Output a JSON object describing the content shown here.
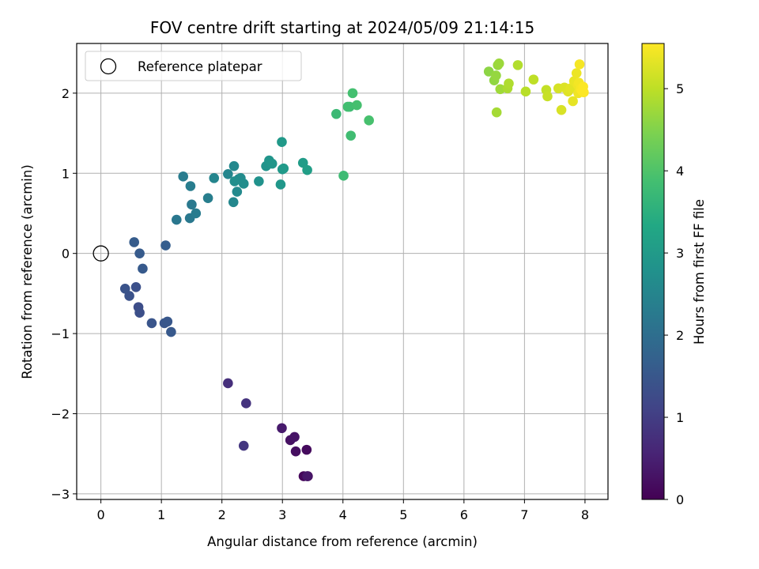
{
  "chart_data": {
    "type": "scatter",
    "title": "FOV centre drift starting at 2024/05/09 21:14:15",
    "xlabel": "Angular distance from reference (arcmin)",
    "ylabel": "Rotation from reference (arcmin)",
    "xlim": [
      -0.4,
      8.38
    ],
    "ylim": [
      -3.07,
      2.62
    ],
    "xticks": [
      0,
      1,
      2,
      3,
      4,
      5,
      6,
      7,
      8
    ],
    "yticks": [
      -3,
      -2,
      -1,
      0,
      1,
      2
    ],
    "grid": true,
    "legend": {
      "placement": "top-left",
      "entries": [
        {
          "label": "Reference platepar",
          "marker": "open-circle"
        }
      ]
    },
    "reference_point": {
      "x": 0,
      "y": 0
    },
    "colorbar": {
      "label": "Hours from first FF file",
      "colormap": "viridis",
      "range": [
        0,
        5.55
      ],
      "ticks": [
        0,
        1,
        2,
        3,
        4,
        5
      ]
    },
    "series": [
      {
        "x": [
          3.42,
          3.35,
          3.4,
          3.22,
          3.13,
          3.2,
          3.41,
          2.99,
          2.1,
          2.4,
          2.36,
          0.62,
          0.64,
          0.58,
          0.47,
          0.4,
          0.84,
          1.05,
          1.1,
          1.16,
          0.69,
          0.64,
          0.55,
          1.07,
          1.25,
          1.47,
          1.5,
          1.57,
          1.36,
          1.48,
          1.77,
          1.87,
          2.1,
          2.19,
          2.2,
          2.25,
          2.28,
          2.31,
          2.36,
          2.21,
          2.61,
          2.73,
          2.78,
          2.83,
          2.97,
          3.0,
          2.99,
          3.02,
          3.34,
          3.41,
          3.89,
          4.01,
          4.11,
          4.13,
          4.08,
          4.16,
          4.23,
          4.43,
          6.41,
          6.5,
          6.53,
          6.56,
          6.58,
          6.6,
          6.54,
          6.72,
          6.74,
          6.89,
          7.02,
          7.15,
          7.36,
          7.38,
          7.56,
          7.61,
          7.66,
          7.72,
          7.76,
          7.8,
          7.82,
          7.86,
          7.88,
          7.89,
          7.9,
          7.91,
          7.93,
          7.95,
          7.97,
          7.98
        ],
        "y": [
          -2.78,
          -2.78,
          -2.45,
          -2.47,
          -2.33,
          -2.29,
          -2.78,
          -2.18,
          -1.62,
          -1.87,
          -2.4,
          -0.67,
          -0.74,
          -0.42,
          -0.53,
          -0.44,
          -0.87,
          -0.87,
          -0.85,
          -0.98,
          -0.19,
          0.0,
          0.14,
          0.1,
          0.42,
          0.44,
          0.61,
          0.5,
          0.96,
          0.84,
          0.69,
          0.94,
          0.99,
          0.64,
          1.09,
          0.77,
          0.93,
          0.94,
          0.87,
          0.9,
          0.9,
          1.09,
          1.16,
          1.12,
          0.86,
          1.05,
          1.39,
          1.06,
          1.13,
          1.04,
          1.74,
          0.97,
          1.83,
          1.47,
          1.83,
          2.0,
          1.85,
          1.66,
          2.27,
          2.16,
          2.22,
          2.35,
          2.37,
          2.05,
          1.76,
          2.06,
          2.12,
          2.35,
          2.02,
          2.17,
          2.04,
          1.96,
          2.06,
          1.79,
          2.07,
          2.02,
          2.06,
          1.9,
          2.15,
          2.25,
          2.1,
          2.0,
          2.13,
          2.36,
          2.05,
          2.03,
          2.08,
          2.01
        ],
        "hours": [
          0.05,
          0.1,
          0.15,
          0.2,
          0.25,
          0.3,
          0.35,
          0.4,
          0.75,
          0.82,
          0.88,
          1.3,
          1.33,
          1.36,
          1.39,
          1.42,
          1.45,
          1.48,
          1.51,
          1.54,
          1.56,
          1.58,
          1.6,
          1.65,
          2.2,
          2.22,
          2.25,
          2.28,
          2.3,
          2.33,
          2.36,
          2.5,
          2.53,
          2.56,
          2.58,
          2.61,
          2.63,
          2.66,
          2.69,
          2.71,
          2.8,
          2.83,
          2.86,
          2.89,
          2.92,
          2.95,
          2.97,
          3.0,
          3.05,
          3.1,
          3.75,
          3.78,
          3.8,
          3.82,
          3.85,
          3.88,
          3.9,
          3.92,
          4.6,
          4.63,
          4.66,
          4.69,
          4.72,
          4.75,
          4.8,
          4.85,
          4.88,
          4.9,
          4.95,
          5.0,
          5.05,
          5.08,
          5.2,
          5.23,
          5.26,
          5.29,
          5.32,
          5.35,
          5.38,
          5.4,
          5.42,
          5.44,
          5.46,
          5.48,
          5.5,
          5.52,
          5.53,
          5.54
        ]
      }
    ]
  }
}
